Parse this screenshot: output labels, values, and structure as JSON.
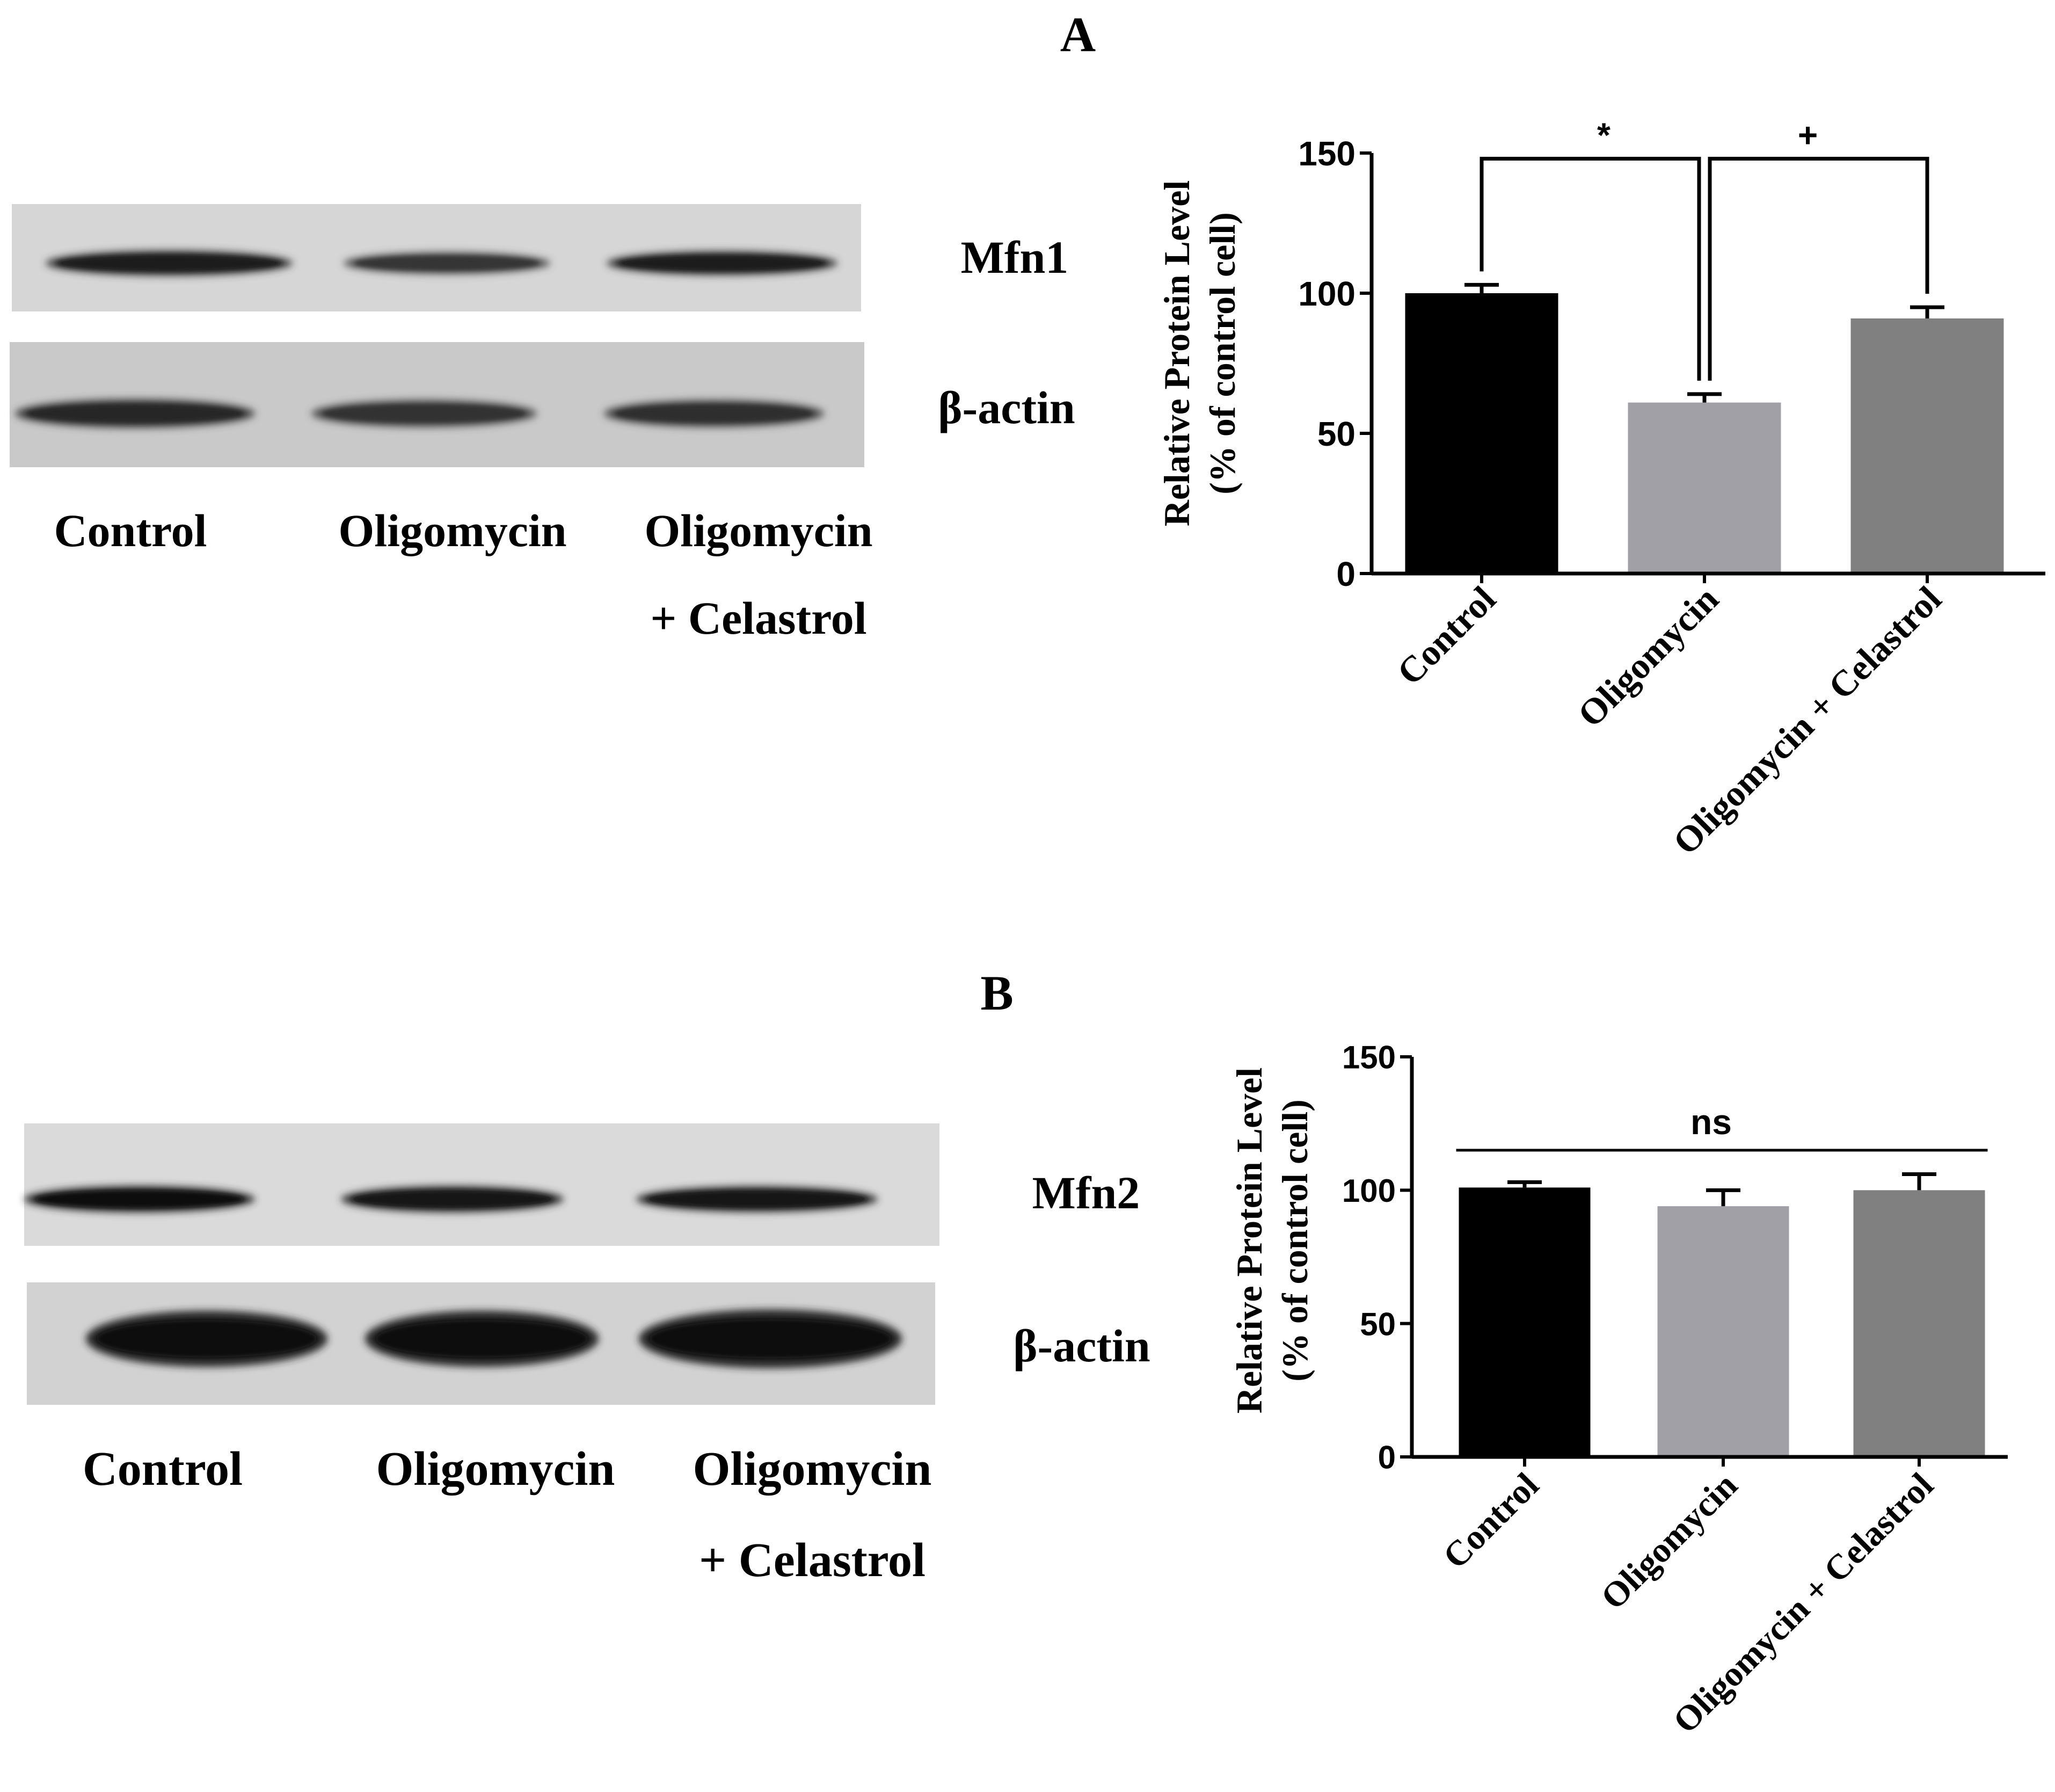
{
  "panels": [
    {
      "panel_label": "A",
      "blot": {
        "rows": [
          {
            "label": "Mfn1",
            "band_intensity": [
              0.85,
              0.7,
              0.85
            ],
            "band_thickness": [
              0.35,
              0.22,
              0.3
            ]
          },
          {
            "label": "β-actin",
            "band_intensity": [
              0.8,
              0.72,
              0.75
            ],
            "band_thickness": [
              0.3,
              0.25,
              0.25
            ]
          }
        ],
        "lanes": [
          {
            "line1": "Control",
            "line2": ""
          },
          {
            "line1": "Oligomycin",
            "line2": ""
          },
          {
            "line1": "Oligomycin",
            "line2": "+ Celastrol"
          }
        ]
      }
    },
    {
      "panel_label": "B",
      "blot": {
        "rows": [
          {
            "label": "Mfn2",
            "band_intensity": [
              0.95,
              0.9,
              0.9
            ],
            "band_thickness": [
              0.3,
              0.3,
              0.28
            ]
          },
          {
            "label": "β-actin",
            "band_intensity": [
              1.0,
              1.0,
              1.0
            ],
            "band_thickness": [
              0.5,
              0.5,
              0.55
            ]
          }
        ],
        "lanes": [
          {
            "line1": "Control",
            "line2": ""
          },
          {
            "line1": "Oligomycin",
            "line2": ""
          },
          {
            "line1": "Oligomycin",
            "line2": "+ Celastrol"
          }
        ]
      }
    }
  ],
  "chart_data": [
    {
      "type": "bar",
      "categories": [
        "Control",
        "Oligomycin",
        "Oligomycin + Celastrol"
      ],
      "values": [
        100,
        61,
        91
      ],
      "errors": [
        3,
        3,
        4
      ],
      "bar_colors": [
        "#000000",
        "#a0a0a6",
        "#808080"
      ],
      "ylabel_line1": "Relative Protein Level",
      "ylabel_line2": "(% of control cell)",
      "ylim": [
        0,
        150
      ],
      "yticks": [
        0,
        50,
        100,
        150
      ],
      "grid": false,
      "significance": [
        {
          "from": 0,
          "to": 1,
          "label": "*",
          "y": 148
        },
        {
          "from": 1,
          "to": 2,
          "label": "+",
          "y": 148
        }
      ]
    },
    {
      "type": "bar",
      "categories": [
        "Control",
        "Oligomycin",
        "Oligomycin + Celastrol"
      ],
      "values": [
        101,
        94,
        100
      ],
      "errors": [
        2,
        6,
        6
      ],
      "bar_colors": [
        "#000000",
        "#a0a0a6",
        "#808080"
      ],
      "ylabel_line1": "Relative Protein Level",
      "ylabel_line2": "(% of control cell)",
      "ylim": [
        0,
        150
      ],
      "yticks": [
        0,
        50,
        100,
        150
      ],
      "grid": false,
      "significance": [
        {
          "from": 0,
          "to": 2,
          "label": "ns",
          "y": 115,
          "style": "line"
        }
      ]
    }
  ]
}
